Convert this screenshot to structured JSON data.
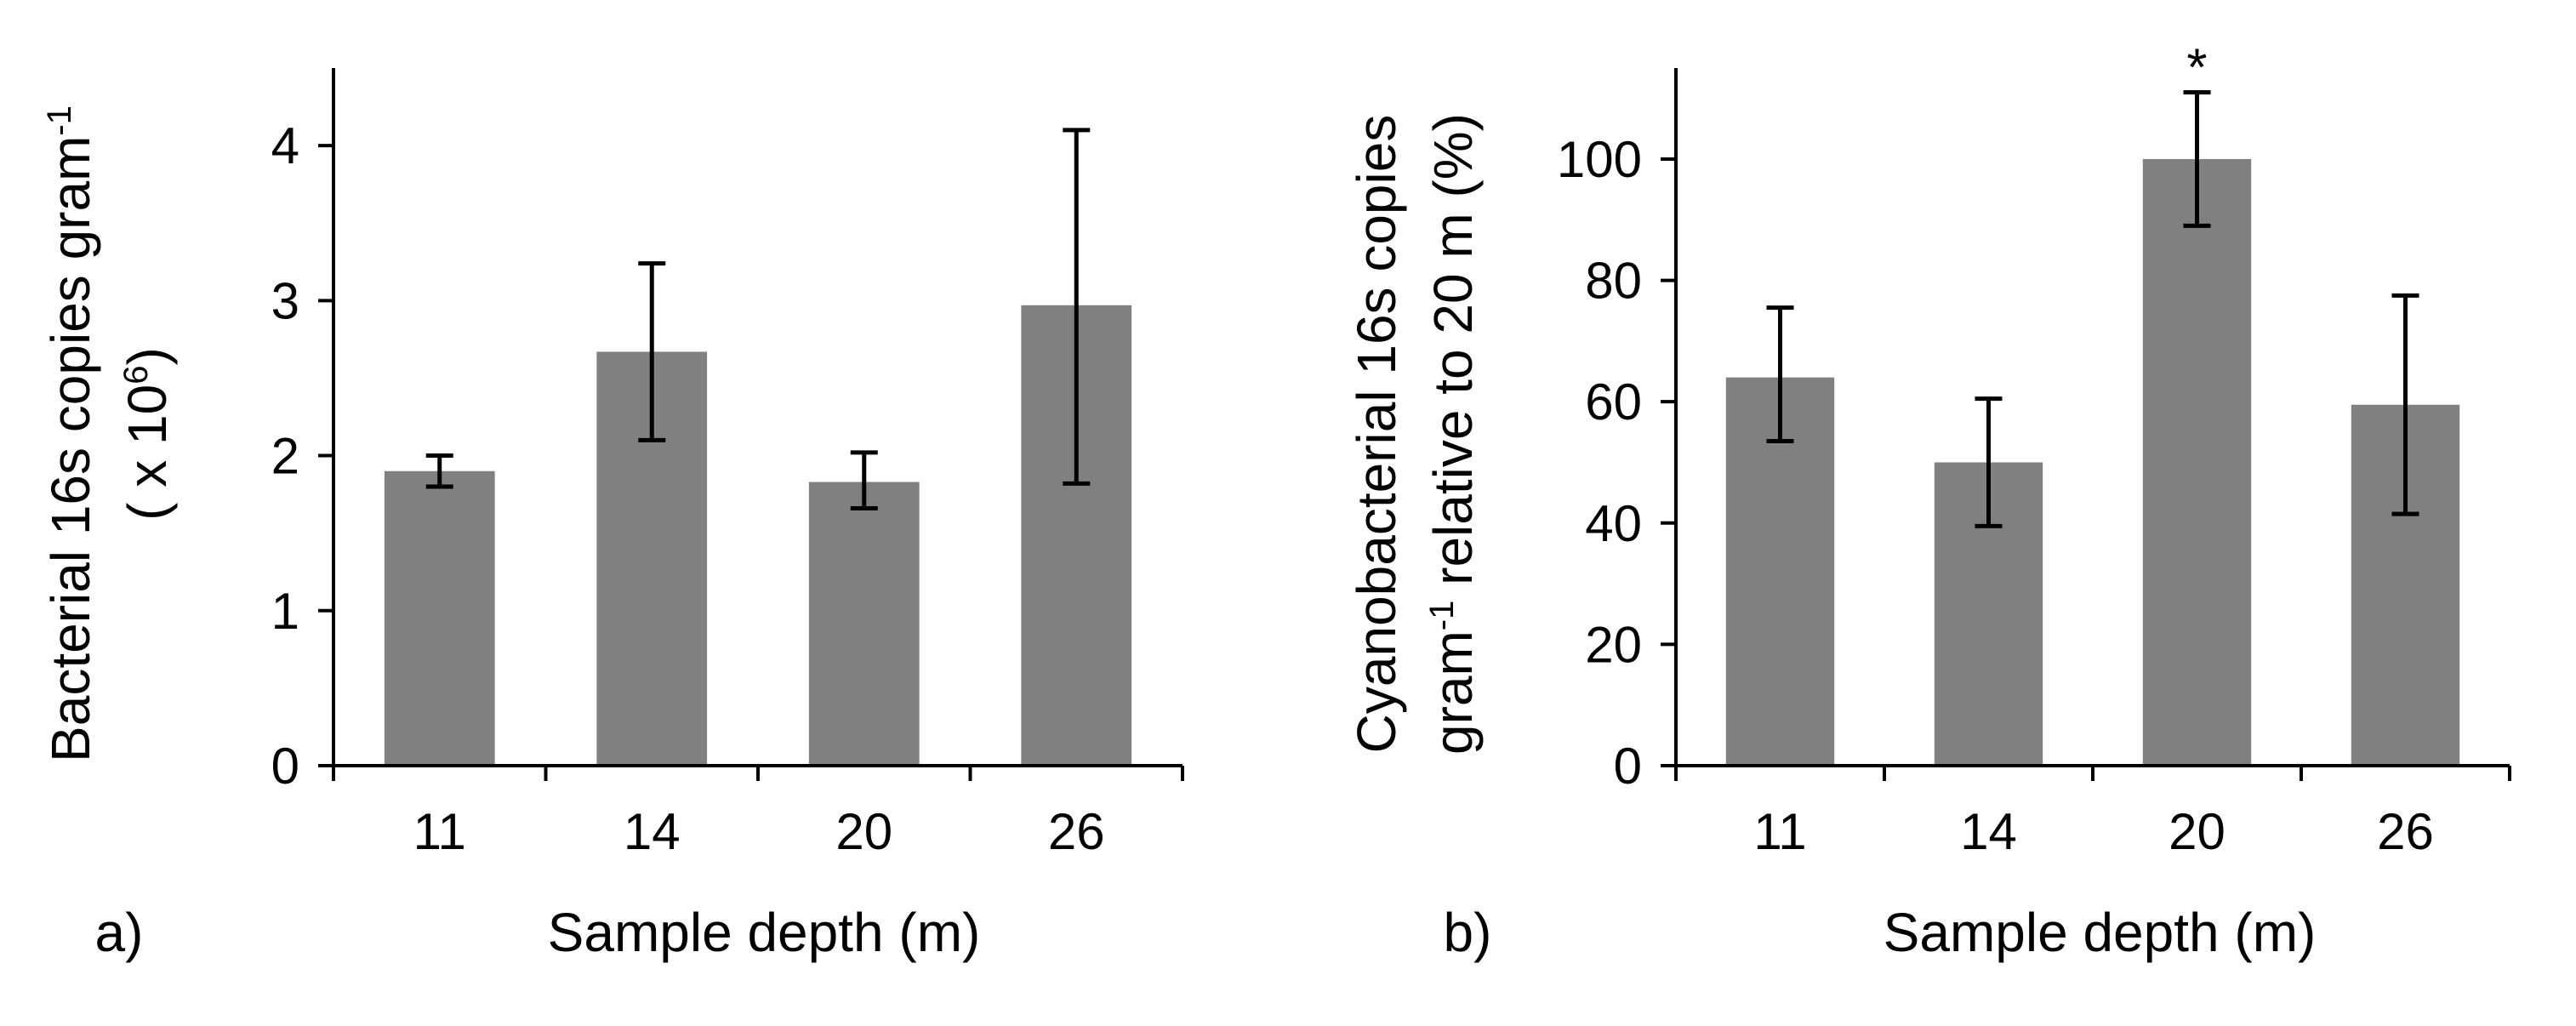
{
  "chart_data": [
    {
      "panel_label": "a)",
      "type": "bar",
      "xlabel": "Sample depth (m)",
      "ylabel_lines": [
        "Bacterial 16s copies gram-1",
        "( x 106)"
      ],
      "ylabel_segments": [
        [
          {
            "text": "Bacterial 16s copies gram"
          },
          {
            "text": "-1",
            "sup": true
          }
        ],
        [
          {
            "text": "( x 10"
          },
          {
            "text": "6",
            "sup": true
          },
          {
            "text": ")"
          }
        ]
      ],
      "categories": [
        "11",
        "14",
        "20",
        "26"
      ],
      "values": [
        1.9,
        2.67,
        1.83,
        2.97
      ],
      "error_low": [
        1.8,
        2.1,
        1.66,
        1.82
      ],
      "error_high": [
        2.0,
        3.24,
        2.02,
        4.1
      ],
      "annotations": [
        "",
        "",
        "",
        ""
      ],
      "ylim": [
        0,
        4.5
      ],
      "yticks": [
        0,
        1,
        2,
        3,
        4
      ],
      "ytick_labels": [
        "0",
        "1",
        "2",
        "3",
        "4"
      ],
      "bar_color": "#808080",
      "grid": false
    },
    {
      "panel_label": "b)",
      "type": "bar",
      "xlabel": "Sample depth (m)",
      "ylabel_lines": [
        "Cyanobacterial 16s copies",
        "gram-1 relative to 20 m (%)"
      ],
      "ylabel_segments": [
        [
          {
            "text": "Cyanobacterial 16s copies"
          }
        ],
        [
          {
            "text": "gram"
          },
          {
            "text": "-1",
            "sup": true
          },
          {
            "text": " relative to 20 m (%)"
          }
        ]
      ],
      "categories": [
        "11",
        "14",
        "20",
        "26"
      ],
      "values": [
        64,
        50,
        100,
        59.5
      ],
      "error_low": [
        53.5,
        39.5,
        89,
        41.5
      ],
      "error_high": [
        75.5,
        60.5,
        111,
        77.5
      ],
      "annotations": [
        "",
        "",
        "*",
        ""
      ],
      "ylim": [
        0,
        115
      ],
      "yticks": [
        0,
        20,
        40,
        60,
        80,
        100
      ],
      "ytick_labels": [
        "0",
        "20",
        "40",
        "60",
        "80",
        "100"
      ],
      "bar_color": "#808080",
      "grid": false
    }
  ]
}
